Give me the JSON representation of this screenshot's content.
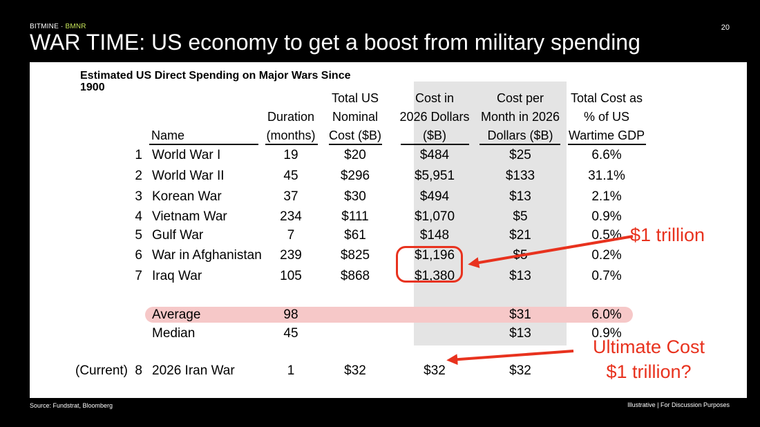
{
  "brand": {
    "name": "BITMINE",
    "separator": " · ",
    "ticker": "BMNR"
  },
  "page_number": "20",
  "title": "WAR TIME: US economy to get a boost from military spending",
  "table": {
    "title": "Estimated US Direct Spending on Major Wars Since 1900",
    "headers": {
      "name": "Name",
      "duration": [
        "Duration",
        "(months)"
      ],
      "nominal": [
        "Total US",
        "Nominal",
        "Cost ($B)"
      ],
      "cost2026": [
        "Cost in",
        "2026 Dollars",
        "($B)"
      ],
      "permonth": [
        "Cost per",
        "Month in 2026",
        "Dollars ($B)"
      ],
      "gdp": [
        "Total Cost as",
        "% of US",
        "Wartime GDP"
      ]
    },
    "rows": [
      {
        "num": "1",
        "name": "World War I",
        "duration": "19",
        "nominal": "$20",
        "cost2026": "$484",
        "permonth": "$25",
        "gdp": "6.6%"
      },
      {
        "num": "2",
        "name": "World War II",
        "duration": "45",
        "nominal": "$296",
        "cost2026": "$5,951",
        "permonth": "$133",
        "gdp": "31.1%"
      },
      {
        "num": "3",
        "name": "Korean War",
        "duration": "37",
        "nominal": "$30",
        "cost2026": "$494",
        "permonth": "$13",
        "gdp": "2.1%"
      },
      {
        "num": "4",
        "name": "Vietnam War",
        "duration": "234",
        "nominal": "$111",
        "cost2026": "$1,070",
        "permonth": "$5",
        "gdp": "0.9%"
      },
      {
        "num": "5",
        "name": "Gulf War",
        "duration": "7",
        "nominal": "$61",
        "cost2026": "$148",
        "permonth": "$21",
        "gdp": "0.5%"
      },
      {
        "num": "6",
        "name": "War in Afghanistan",
        "duration": "239",
        "nominal": "$825",
        "cost2026": "$1,196",
        "permonth": "$5",
        "gdp": "0.2%"
      },
      {
        "num": "7",
        "name": "Iraq War",
        "duration": "105",
        "nominal": "$868",
        "cost2026": "$1,380",
        "permonth": "$13",
        "gdp": "0.7%"
      }
    ],
    "average": {
      "name": "Average",
      "duration": "98",
      "permonth": "$31",
      "gdp": "6.0%"
    },
    "median": {
      "name": "Median",
      "duration": "45",
      "permonth": "$13",
      "gdp": "0.9%"
    },
    "current": {
      "label": "(Current)",
      "num": "8",
      "name": "2026 Iran War",
      "duration": "1",
      "nominal": "$32",
      "cost2026": "$32",
      "permonth": "$32"
    }
  },
  "callouts": {
    "trillion": "$1 trillion",
    "ultimate_line1": "Ultimate Cost",
    "ultimate_line2": "$1 trillion?"
  },
  "footer": {
    "source": "Source: Fundstrat, Bloomberg",
    "disclaimer": "Illustrative  |  For Discussion Purposes"
  },
  "colors": {
    "accent_red": "#e8321e",
    "ticker_green": "#c8e65a",
    "avg_band": "#f6c8c8",
    "shade": "#e4e4e4"
  }
}
